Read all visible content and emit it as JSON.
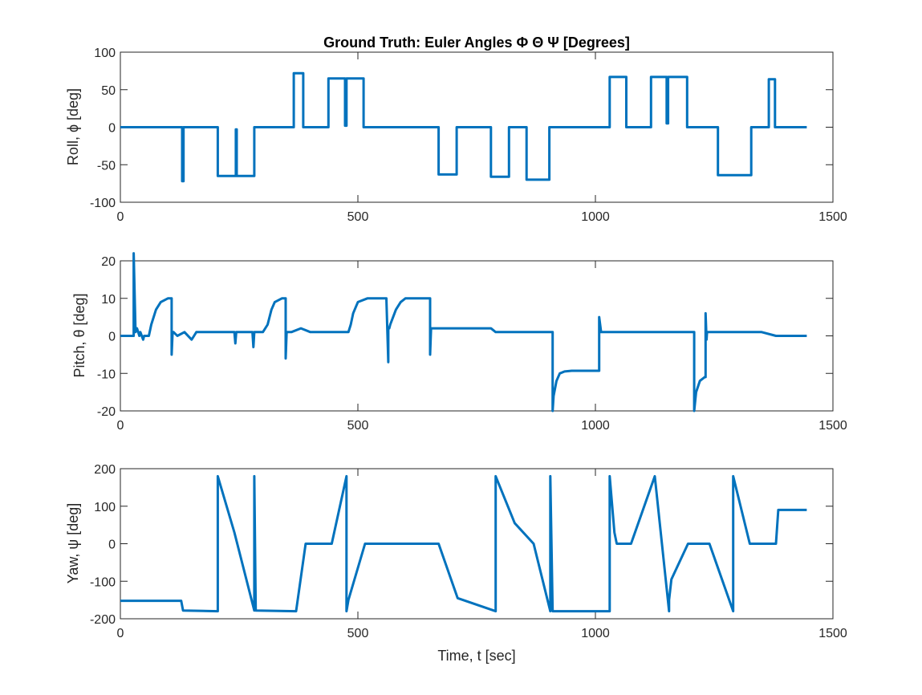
{
  "figure": {
    "title": "Ground Truth: Euler Angles Φ Θ Ψ [Degrees]",
    "line_color": "#0072BD"
  },
  "chart_data": [
    {
      "type": "line",
      "ylabel": "Roll, ϕ [deg]",
      "xlabel": "",
      "xlim": [
        0,
        1500
      ],
      "ylim": [
        -100,
        100
      ],
      "xticks": [
        0,
        500,
        1000,
        1500
      ],
      "yticks": [
        -100,
        -50,
        0,
        50,
        100
      ],
      "series": [
        {
          "x": [
            0,
            130,
            130,
            133,
            133,
            205,
            205,
            243,
            243,
            245,
            245,
            282,
            282,
            365,
            365,
            385,
            385,
            438,
            438,
            473,
            473,
            476,
            476,
            512,
            512,
            670,
            670,
            708,
            708,
            780,
            780,
            818,
            818,
            855,
            855,
            903,
            903,
            1030,
            1030,
            1065,
            1065,
            1117,
            1117,
            1150,
            1150,
            1153,
            1153,
            1193,
            1193,
            1258,
            1258,
            1328,
            1328,
            1365,
            1365,
            1378,
            1378,
            1390,
            1390,
            1445
          ],
          "y": [
            0,
            0,
            -72,
            -72,
            0,
            0,
            -65,
            -65,
            -3,
            -3,
            -65,
            -65,
            0,
            0,
            72,
            72,
            0,
            0,
            65,
            65,
            2,
            2,
            65,
            65,
            0,
            0,
            -63,
            -63,
            0,
            0,
            -66,
            -66,
            0,
            0,
            -70,
            -70,
            0,
            0,
            67,
            67,
            0,
            0,
            67,
            67,
            5,
            5,
            67,
            67,
            0,
            0,
            -64,
            -64,
            0,
            0,
            64,
            64,
            0,
            0,
            0,
            0
          ]
        }
      ]
    },
    {
      "type": "line",
      "ylabel": "Pitch, θ [deg]",
      "xlabel": "",
      "xlim": [
        0,
        1500
      ],
      "ylim": [
        -20,
        20
      ],
      "xticks": [
        0,
        500,
        1000,
        1500
      ],
      "yticks": [
        -20,
        -10,
        0,
        10,
        20
      ],
      "series": [
        {
          "x": [
            0,
            28,
            28,
            32,
            35,
            40,
            42,
            48,
            50,
            60,
            65,
            75,
            85,
            100,
            108,
            108,
            110,
            112,
            120,
            135,
            150,
            155,
            160,
            180,
            200,
            240,
            242,
            244,
            278,
            280,
            282,
            300,
            310,
            318,
            325,
            340,
            348,
            348,
            350,
            352,
            360,
            380,
            400,
            440,
            465,
            480,
            485,
            490,
            500,
            520,
            540,
            550,
            560,
            564,
            564,
            566,
            568,
            580,
            590,
            600,
            620,
            640,
            652,
            652,
            654,
            656,
            680,
            720,
            780,
            790,
            840,
            900,
            910,
            910,
            912,
            918,
            925,
            935,
            950,
            970,
            1000,
            1008,
            1008,
            1012,
            1016,
            1030,
            1100,
            1150,
            1180,
            1205,
            1208,
            1208,
            1212,
            1220,
            1230,
            1232,
            1232,
            1234,
            1235,
            1240,
            1250,
            1300,
            1350,
            1380,
            1400,
            1445
          ],
          "y": [
            0,
            0,
            22,
            1,
            2,
            0,
            1,
            -1,
            0,
            0,
            3,
            7,
            9,
            10,
            10,
            -5,
            1,
            1,
            0,
            1,
            -1,
            0,
            1,
            1,
            1,
            1,
            -2,
            1,
            1,
            -3,
            1,
            1,
            3,
            7,
            9,
            10,
            10,
            -6,
            1,
            1,
            1,
            2,
            1,
            1,
            1,
            1,
            3,
            6,
            9,
            10,
            10,
            10,
            10,
            -7,
            2,
            2,
            3,
            7,
            9,
            10,
            10,
            10,
            10,
            -5,
            2,
            2,
            2,
            2,
            2,
            1,
            1,
            1,
            1,
            -20,
            -16,
            -12,
            -10,
            -9.5,
            -9.3,
            -9.3,
            -9.3,
            -9.3,
            5,
            1,
            1,
            1,
            1,
            1,
            1,
            1,
            1,
            -20,
            -15,
            -12,
            -11,
            -11,
            6,
            -1,
            1,
            1,
            1,
            1,
            1,
            0,
            0,
            0
          ]
        }
      ]
    },
    {
      "type": "line",
      "ylabel": "Yaw, ψ [deg]",
      "xlabel": "Time, t [sec]",
      "xlim": [
        0,
        1500
      ],
      "ylim": [
        -200,
        200
      ],
      "xticks": [
        0,
        500,
        1000,
        1500
      ],
      "yticks": [
        -200,
        -100,
        0,
        100,
        200
      ],
      "series": [
        {
          "x": [
            0,
            128,
            132,
            205,
            205,
            240,
            282,
            282,
            285,
            370,
            390,
            445,
            476,
            476,
            480,
            515,
            670,
            710,
            790,
            790,
            830,
            870,
            905,
            905,
            910,
            1030,
            1030,
            1040,
            1045,
            1075,
            1125,
            1155,
            1155,
            1160,
            1195,
            1240,
            1290,
            1290,
            1325,
            1380,
            1385,
            1445
          ],
          "y": [
            -152,
            -152,
            -178,
            -180,
            180,
            30,
            -178,
            180,
            -178,
            -180,
            0,
            0,
            180,
            -180,
            -150,
            0,
            0,
            -145,
            -180,
            180,
            55,
            0,
            -180,
            180,
            -180,
            -180,
            180,
            30,
            0,
            0,
            180,
            -180,
            -150,
            -95,
            0,
            0,
            -180,
            180,
            0,
            0,
            90,
            90
          ]
        }
      ]
    }
  ]
}
